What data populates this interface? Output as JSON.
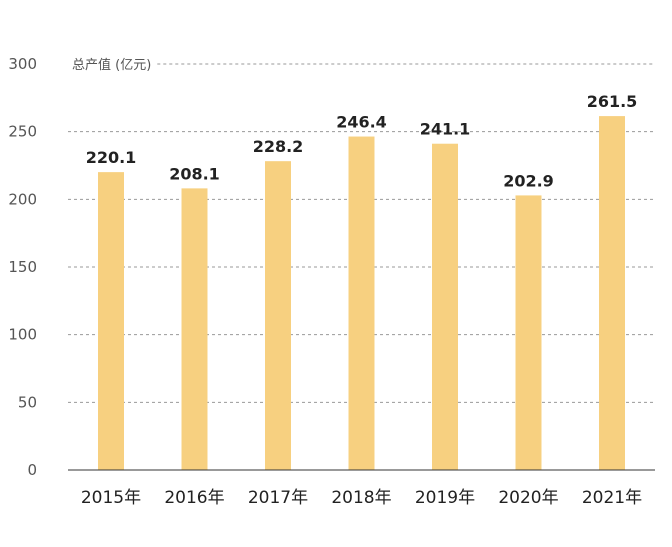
{
  "chart_data": {
    "type": "bar",
    "title": "",
    "ylabel": "总产值 (亿元)",
    "xlabel": "",
    "categories": [
      "2015年",
      "2016年",
      "2017年",
      "2018年",
      "2019年",
      "2020年",
      "2021年"
    ],
    "values": [
      220.1,
      208.1,
      228.2,
      246.4,
      241.1,
      202.9,
      261.5
    ],
    "value_labels": [
      "220.1",
      "208.1",
      "228.2",
      "246.4",
      "241.1",
      "202.9",
      "261.5"
    ],
    "ylim": [
      0,
      300
    ],
    "yticks": [
      "0",
      "50",
      "100",
      "150",
      "200",
      "250",
      "300"
    ],
    "grid": true,
    "bar_color": "#F7D080"
  }
}
